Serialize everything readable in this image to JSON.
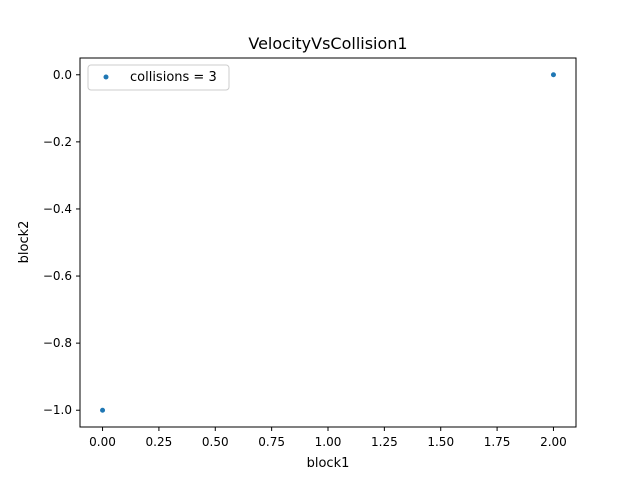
{
  "chart_data": {
    "type": "scatter",
    "title": "VelocityVsCollision1",
    "xlabel": "block1",
    "ylabel": "block2",
    "xlim": [
      -0.1,
      2.1
    ],
    "ylim": [
      -1.05,
      0.05
    ],
    "xticks": [
      0.0,
      0.25,
      0.5,
      0.75,
      1.0,
      1.25,
      1.5,
      1.75,
      2.0
    ],
    "xtick_labels": [
      "0.00",
      "0.25",
      "0.50",
      "0.75",
      "1.00",
      "1.25",
      "1.50",
      "1.75",
      "2.00"
    ],
    "yticks": [
      0.0,
      -0.2,
      -0.4,
      -0.6,
      -0.8,
      -1.0
    ],
    "ytick_labels": [
      "0.0",
      "−0.2",
      "−0.4",
      "−0.6",
      "−0.8",
      "−1.0"
    ],
    "grid": false,
    "legend_position": "top-left",
    "series": [
      {
        "name": "collisions = 3",
        "color": "#1f77b4",
        "points": [
          {
            "x": 0.0,
            "y": -1.0
          },
          {
            "x": 2.0,
            "y": 0.0
          }
        ]
      }
    ]
  }
}
